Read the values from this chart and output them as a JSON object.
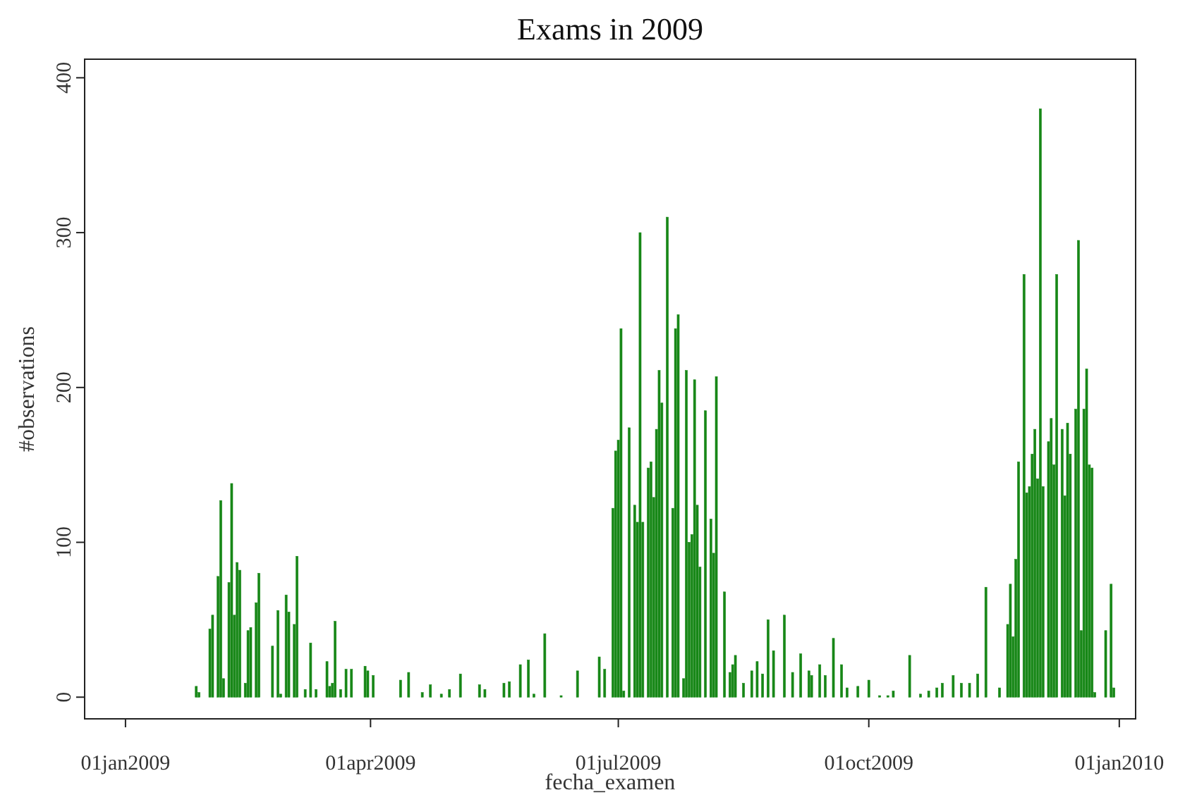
{
  "chart_data": {
    "type": "bar",
    "title": "Exams in 2009",
    "xlabel": "fecha_examen",
    "ylabel": "#observations",
    "color": "#178717",
    "grid": false,
    "x": [
      "2009-01-27",
      "2009-01-28",
      "2009-02-01",
      "2009-02-02",
      "2009-02-04",
      "2009-02-05",
      "2009-02-06",
      "2009-02-08",
      "2009-02-09",
      "2009-02-10",
      "2009-02-11",
      "2009-02-12",
      "2009-02-14",
      "2009-02-15",
      "2009-02-16",
      "2009-02-18",
      "2009-02-19",
      "2009-02-24",
      "2009-02-26",
      "2009-02-27",
      "2009-03-01",
      "2009-03-02",
      "2009-03-04",
      "2009-03-05",
      "2009-03-08",
      "2009-03-10",
      "2009-03-12",
      "2009-03-16",
      "2009-03-17",
      "2009-03-18",
      "2009-03-19",
      "2009-03-21",
      "2009-03-23",
      "2009-03-25",
      "2009-03-30",
      "2009-03-31",
      "2009-04-02",
      "2009-04-12",
      "2009-04-15",
      "2009-04-20",
      "2009-04-23",
      "2009-04-27",
      "2009-04-30",
      "2009-05-04",
      "2009-05-11",
      "2009-05-13",
      "2009-05-20",
      "2009-05-22",
      "2009-05-26",
      "2009-05-29",
      "2009-05-31",
      "2009-06-04",
      "2009-06-10",
      "2009-06-16",
      "2009-06-24",
      "2009-06-26",
      "2009-06-29",
      "2009-06-30",
      "2009-07-01",
      "2009-07-02",
      "2009-07-03",
      "2009-07-05",
      "2009-07-07",
      "2009-07-08",
      "2009-07-09",
      "2009-07-10",
      "2009-07-12",
      "2009-07-13",
      "2009-07-14",
      "2009-07-15",
      "2009-07-16",
      "2009-07-17",
      "2009-07-19",
      "2009-07-21",
      "2009-07-22",
      "2009-07-23",
      "2009-07-25",
      "2009-07-26",
      "2009-07-27",
      "2009-07-28",
      "2009-07-29",
      "2009-07-30",
      "2009-07-31",
      "2009-08-02",
      "2009-08-04",
      "2009-08-05",
      "2009-08-06",
      "2009-08-09",
      "2009-08-11",
      "2009-08-12",
      "2009-08-13",
      "2009-08-16",
      "2009-08-19",
      "2009-08-21",
      "2009-08-23",
      "2009-08-25",
      "2009-08-27",
      "2009-08-31",
      "2009-09-03",
      "2009-09-06",
      "2009-09-09",
      "2009-09-10",
      "2009-09-13",
      "2009-09-15",
      "2009-09-18",
      "2009-09-21",
      "2009-09-23",
      "2009-09-27",
      "2009-10-01",
      "2009-10-05",
      "2009-10-08",
      "2009-10-10",
      "2009-10-16",
      "2009-10-20",
      "2009-10-23",
      "2009-10-26",
      "2009-10-28",
      "2009-11-01",
      "2009-11-04",
      "2009-11-07",
      "2009-11-10",
      "2009-11-13",
      "2009-11-18",
      "2009-11-21",
      "2009-11-22",
      "2009-11-23",
      "2009-11-24",
      "2009-11-25",
      "2009-11-27",
      "2009-11-28",
      "2009-11-29",
      "2009-11-30",
      "2009-12-01",
      "2009-12-02",
      "2009-12-03",
      "2009-12-04",
      "2009-12-06",
      "2009-12-07",
      "2009-12-08",
      "2009-12-09",
      "2009-12-11",
      "2009-12-12",
      "2009-12-13",
      "2009-12-14",
      "2009-12-16",
      "2009-12-17",
      "2009-12-18",
      "2009-12-19",
      "2009-12-20",
      "2009-12-21",
      "2009-12-22",
      "2009-12-23",
      "2009-12-27",
      "2009-12-29",
      "2009-12-30"
    ],
    "values": [
      7,
      3,
      44,
      53,
      78,
      127,
      12,
      74,
      138,
      53,
      87,
      82,
      9,
      43,
      45,
      61,
      80,
      33,
      56,
      2,
      66,
      55,
      47,
      91,
      5,
      35,
      5,
      23,
      7,
      9,
      49,
      5,
      18,
      18,
      20,
      17,
      14,
      11,
      16,
      3,
      8,
      2,
      5,
      15,
      8,
      5,
      9,
      10,
      21,
      24,
      2,
      41,
      1,
      17,
      26,
      18,
      122,
      159,
      166,
      238,
      4,
      174,
      124,
      113,
      300,
      113,
      148,
      152,
      129,
      173,
      211,
      190,
      310,
      122,
      238,
      247,
      12,
      211,
      100,
      105,
      205,
      124,
      84,
      185,
      115,
      93,
      207,
      68,
      16,
      21,
      27,
      9,
      17,
      23,
      15,
      50,
      30,
      53,
      16,
      28,
      17,
      14,
      21,
      14,
      38,
      21,
      6,
      7,
      11,
      1,
      1,
      4,
      27,
      2,
      4,
      6,
      9,
      14,
      9,
      9,
      15,
      71,
      6,
      47,
      73,
      39,
      89,
      152,
      273,
      132,
      136,
      157,
      173,
      141,
      380,
      136,
      165,
      180,
      150,
      273,
      173,
      130,
      177,
      157,
      186,
      295,
      43,
      186,
      212,
      150,
      148,
      3,
      43,
      73,
      6
    ],
    "xlim": [
      "2008-12-17",
      "2010-01-07"
    ],
    "ylim": [
      -14,
      412
    ],
    "xticks": [
      {
        "value": "2009-01-01",
        "label": "01jan2009"
      },
      {
        "value": "2009-04-01",
        "label": "01apr2009"
      },
      {
        "value": "2009-07-01",
        "label": "01jul2009"
      },
      {
        "value": "2009-10-01",
        "label": "01oct2009"
      },
      {
        "value": "2010-01-01",
        "label": "01jan2010"
      }
    ],
    "yticks": [
      0,
      100,
      200,
      300,
      400
    ]
  }
}
